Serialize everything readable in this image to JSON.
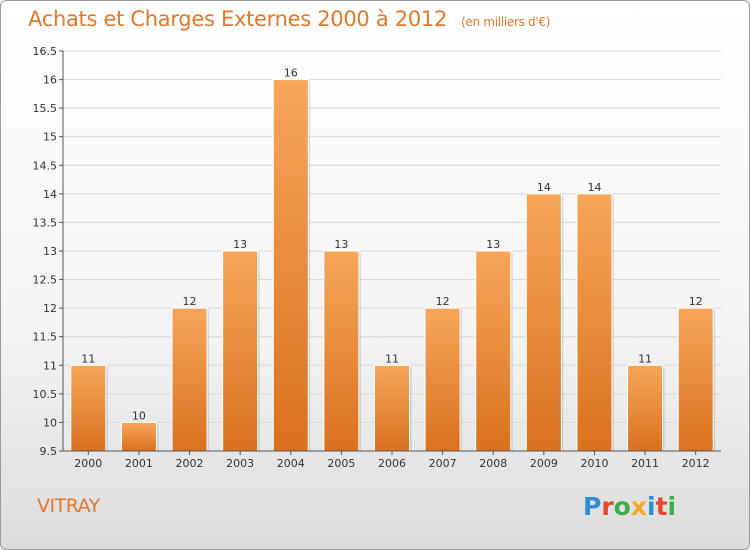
{
  "header": {
    "title": "Achats et Charges Externes 2000 à 2012",
    "subtitle": "(en milliers d'€)"
  },
  "footer": {
    "commune": "VITRAY",
    "logo": {
      "text": "Proxiti",
      "letter_colors": [
        "#2a8fd8",
        "#e8492b",
        "#3fae49",
        "#f5a623",
        "#2a8fd8",
        "#e8492b",
        "#3fae49"
      ]
    }
  },
  "colors": {
    "title": "#e2782a",
    "bar_top": "#f7a65a",
    "bar_bottom": "#d9711f",
    "grid": "#d8d8d8"
  },
  "chart_data": {
    "type": "bar",
    "title": "Achats et Charges Externes 2000 à 2012",
    "subtitle": "(en milliers d'€)",
    "categories": [
      "2000",
      "2001",
      "2002",
      "2003",
      "2004",
      "2005",
      "2006",
      "2007",
      "2008",
      "2009",
      "2010",
      "2011",
      "2012"
    ],
    "values": [
      11,
      10,
      12,
      13,
      16,
      13,
      11,
      12,
      13,
      14,
      14,
      11,
      12
    ],
    "data_labels": [
      "11",
      "10",
      "12",
      "13",
      "16",
      "13",
      "11",
      "12",
      "13",
      "14",
      "14",
      "11",
      "12"
    ],
    "ylim": [
      9.5,
      16.5
    ],
    "yticks": [
      9.5,
      10,
      10.5,
      11,
      11.5,
      12,
      12.5,
      13,
      13.5,
      14,
      14.5,
      15,
      15.5,
      16,
      16.5
    ],
    "ytick_labels": [
      "9.5",
      "10",
      "10.5",
      "11",
      "11.5",
      "12",
      "12.5",
      "13",
      "13.5",
      "14",
      "14.5",
      "15",
      "15.5",
      "16",
      "16.5"
    ],
    "grid": true,
    "legend": "none"
  }
}
